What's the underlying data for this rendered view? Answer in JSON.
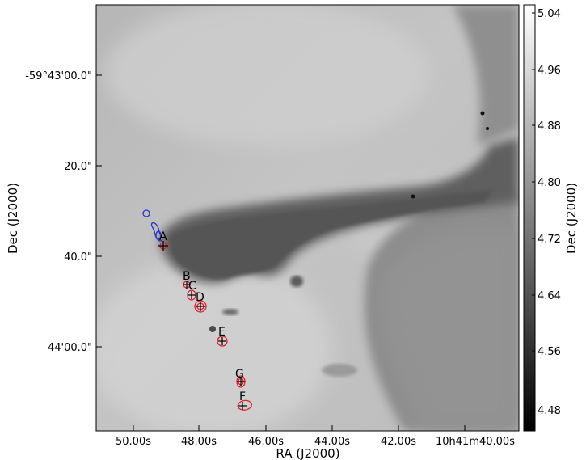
{
  "axes": {
    "xlabel": "RA (J2000)",
    "ylabel": "Dec (J2000)",
    "colorbar_label": "Dec (J2000)"
  },
  "x_ticks": [
    "50.00s",
    "48.00s",
    "46.00s",
    "44.00s",
    "42.00s",
    "10h41m40.00s"
  ],
  "y_ticks": [
    "-59°43'00.0\"",
    "20.0\"",
    "40.0\"",
    "44'00.0\""
  ],
  "colorbar": {
    "ticks": [
      "5.04",
      "4.96",
      "4.88",
      "4.80",
      "4.72",
      "4.64",
      "4.56",
      "4.48"
    ],
    "range": [
      4.45,
      5.05
    ],
    "colormap": "gray"
  },
  "sources": [
    {
      "label": "A"
    },
    {
      "label": "B"
    },
    {
      "label": "C"
    },
    {
      "label": "D"
    },
    {
      "label": "E"
    },
    {
      "label": "G"
    },
    {
      "label": "F"
    }
  ],
  "colors": {
    "red_contour": "#e0202a",
    "blue_contour": "#2233cc",
    "marker": "#000000"
  }
}
